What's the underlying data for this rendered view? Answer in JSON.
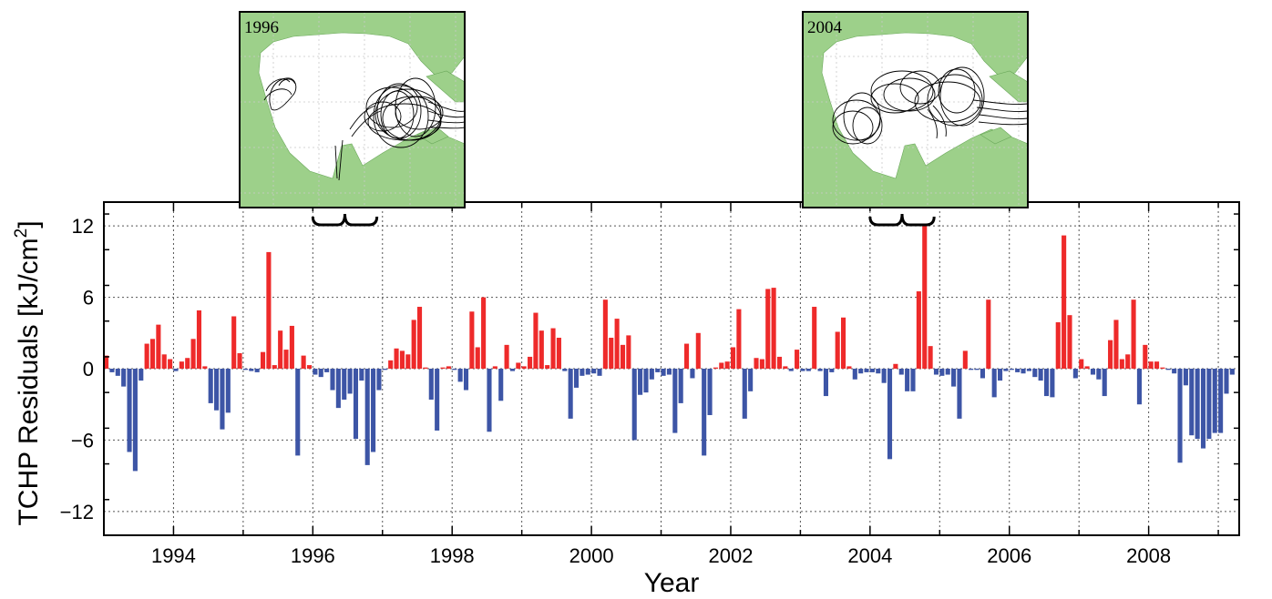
{
  "chart_data": {
    "type": "bar",
    "xlabel": "Year",
    "ylabel": "TCHP Residuals [kJ/cm",
    "ylabel_sup": "2",
    "ylabel_close": "]",
    "xlim": [
      1993.0,
      2009.3
    ],
    "ylim": [
      -14,
      14
    ],
    "x_ticks": [
      1994,
      1996,
      1998,
      2000,
      2002,
      2004,
      2006,
      2008
    ],
    "y_ticks": [
      12,
      6,
      0,
      -6,
      -12
    ],
    "y_tick_labels": [
      "12",
      "6",
      "0",
      "−6",
      "−12"
    ],
    "grid": true,
    "grid_style": "dotted",
    "colors": {
      "positive": "#ee2a2a",
      "negative": "#3d55a6",
      "land": "#9dd08a"
    },
    "series": [
      {
        "x_start": 1993.0,
        "step_months": 1,
        "values": [
          1.1,
          -0.3,
          -0.6,
          -1.5,
          -7.0,
          -8.6,
          -1.0,
          2.1,
          2.5,
          3.7,
          1.2,
          0.8,
          -0.2,
          0.6,
          0.9,
          2.5,
          4.9,
          0.2,
          -2.9,
          -3.5,
          -5.1,
          -3.7,
          4.4,
          1.3,
          -0.1,
          -0.2,
          -0.3,
          1.4,
          9.8,
          0.3,
          3.2,
          1.6,
          3.6,
          -7.3,
          1.1,
          0.3,
          -0.5,
          -0.7,
          -0.3,
          -1.8,
          -3.3,
          -2.6,
          -2.1,
          -5.9,
          -1.0,
          -8.1,
          -7.0,
          -1.8,
          -0.1,
          0.7,
          1.7,
          1.5,
          1.2,
          4.1,
          5.2,
          0.1,
          -2.6,
          -5.2,
          0.1,
          0.2,
          -0.1,
          -1.1,
          -1.8,
          4.8,
          1.8,
          6.0,
          -5.3,
          0.2,
          -2.7,
          2.0,
          -0.2,
          0.5,
          0.2,
          1.0,
          4.7,
          3.2,
          0.3,
          3.4,
          2.6,
          -0.2,
          -4.2,
          -1.6,
          -0.6,
          -0.5,
          -0.4,
          -0.6,
          5.8,
          2.6,
          4.2,
          2.0,
          2.8,
          -6.0,
          -2.2,
          -2.0,
          -0.9,
          -0.3,
          -0.6,
          -0.5,
          -5.4,
          -2.9,
          2.1,
          -0.8,
          3.0,
          -7.3,
          -3.9,
          0.1,
          0.5,
          0.6,
          1.8,
          5.0,
          -4.2,
          -1.9,
          0.9,
          0.8,
          6.7,
          6.8,
          1.0,
          0.2,
          -0.2,
          1.6,
          -0.2,
          -0.2,
          5.2,
          -0.2,
          -2.3,
          -0.3,
          3.1,
          4.3,
          0.2,
          -0.9,
          -0.4,
          -0.3,
          -0.3,
          -0.4,
          -1.2,
          -7.6,
          0.4,
          -0.5,
          -1.9,
          -1.9,
          6.5,
          12.2,
          1.9,
          -0.5,
          -0.6,
          -0.5,
          -1.5,
          -4.2,
          1.5,
          -0.1,
          -0.1,
          -0.8,
          5.8,
          -2.4,
          -1.0,
          -0.2,
          -0.1,
          -0.3,
          -0.4,
          -0.2,
          -0.7,
          -1.0,
          -2.3,
          -2.4,
          3.9,
          11.2,
          4.5,
          -0.8,
          0.8,
          0.2,
          -0.5,
          -0.9,
          -2.3,
          2.4,
          4.1,
          0.8,
          1.2,
          5.8,
          -3.0,
          2.0,
          0.6,
          0.6,
          0.1,
          -0.1,
          -0.4,
          -7.9,
          -1.4,
          -5.6,
          -5.9,
          -6.7,
          -5.9,
          -5.4,
          -5.4,
          -2.1,
          -0.5
        ]
      }
    ],
    "insets": [
      {
        "title": "1996",
        "brace_range": [
          1996.0,
          1996.92
        ]
      },
      {
        "title": "2004",
        "brace_range": [
          2004.0,
          2004.92
        ]
      }
    ]
  }
}
